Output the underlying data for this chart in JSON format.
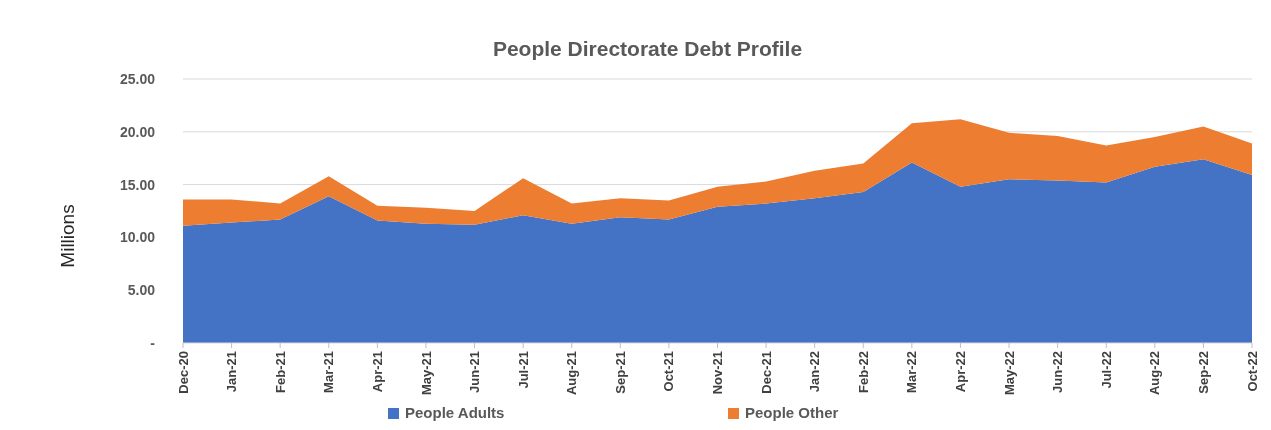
{
  "chart_data": {
    "type": "area",
    "stacked": true,
    "title": "People Directorate Debt Profile",
    "ylabel": "Millions",
    "categories": [
      "Dec-20",
      "Jan-21",
      "Feb-21",
      "Mar-21",
      "Apr-21",
      "May-21",
      "Jun-21",
      "Jul-21",
      "Aug-21",
      "Sep-21",
      "Oct-21",
      "Nov-21",
      "Dec-21",
      "Jan-22",
      "Feb-22",
      "Mar-22",
      "Apr-22",
      "May-22",
      "Jun-22",
      "Jul-22",
      "Aug-22",
      "Sep-22",
      "Oct-22"
    ],
    "series": [
      {
        "name": "People Adults",
        "color": "#4472c4",
        "values": [
          11.1,
          11.4,
          11.7,
          13.9,
          11.6,
          11.3,
          11.2,
          12.1,
          11.3,
          11.9,
          11.7,
          12.9,
          13.2,
          13.7,
          14.3,
          17.1,
          14.8,
          15.5,
          15.4,
          15.2,
          16.7,
          17.4,
          15.9
        ]
      },
      {
        "name": "People Other",
        "color": "#ed7d31",
        "values": [
          2.5,
          2.2,
          1.5,
          1.9,
          1.4,
          1.5,
          1.3,
          3.5,
          1.9,
          1.8,
          1.8,
          1.9,
          2.1,
          2.6,
          2.7,
          3.7,
          6.4,
          4.4,
          4.2,
          3.5,
          2.8,
          3.1,
          3.0
        ]
      }
    ],
    "ylim": [
      0,
      25
    ],
    "yticks": [
      {
        "value": 0,
        "label": "-"
      },
      {
        "value": 5,
        "label": "5.00"
      },
      {
        "value": 10,
        "label": "10.00"
      },
      {
        "value": 15,
        "label": "15.00"
      },
      {
        "value": 20,
        "label": "20.00"
      },
      {
        "value": 25,
        "label": "25.00"
      }
    ],
    "grid": "y",
    "legend": "bottom"
  }
}
